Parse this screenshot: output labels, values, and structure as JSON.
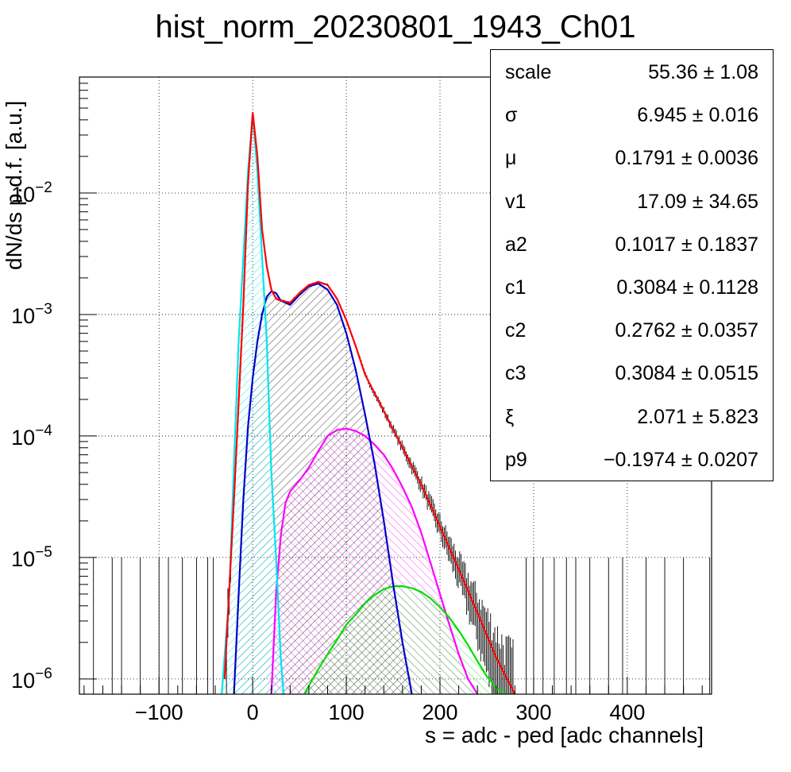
{
  "chart_data": {
    "type": "line",
    "title": "hist_norm_20230801_1943_Ch01",
    "xlabel": "s = adc - ped [adc channels]",
    "ylabel": "dN/ds p.d.f. [a.u.]",
    "xlim": [
      -185,
      490
    ],
    "ylim": [
      7.5e-07,
      0.09
    ],
    "yscale": "log",
    "grid": true,
    "x_ticks": [
      -100,
      0,
      100,
      200,
      300,
      400
    ],
    "x_tick_labels": [
      "−100",
      "0",
      "100",
      "200",
      "300",
      "400"
    ],
    "y_ticks": [
      1e-06,
      1e-05,
      0.0001,
      0.001,
      0.01
    ],
    "y_tick_labels": [
      {
        "base": "10",
        "exp": "−6"
      },
      {
        "base": "10",
        "exp": "−5"
      },
      {
        "base": "10",
        "exp": "−4"
      },
      {
        "base": "10",
        "exp": "−3"
      },
      {
        "base": "10",
        "exp": "−2"
      }
    ],
    "series": [
      {
        "color": "#ff0000",
        "role": "total fit",
        "x": [
          -30,
          -20,
          -10,
          -5,
          0,
          5,
          10,
          15,
          20,
          25,
          30,
          40,
          50,
          60,
          70,
          80,
          90,
          100,
          110,
          120,
          140,
          160,
          180,
          200,
          220,
          240,
          260,
          280
        ],
        "y": [
          1e-06,
          3e-05,
          0.0012,
          0.012,
          0.046,
          0.02,
          0.005,
          0.0025,
          0.0016,
          0.00135,
          0.0013,
          0.00125,
          0.0015,
          0.00175,
          0.00185,
          0.00175,
          0.00135,
          0.0009,
          0.00055,
          0.00032,
          0.00016,
          8e-05,
          4e-05,
          1.8e-05,
          8e-06,
          3.5e-06,
          1.5e-06,
          7.5e-07
        ]
      },
      {
        "color": "#00e5ee",
        "role": "pedestal component",
        "x": [
          -33,
          -25,
          -20,
          -15,
          -10,
          -5,
          0,
          5,
          10,
          15,
          20,
          25,
          30,
          33
        ],
        "y": [
          7.5e-07,
          5e-06,
          6e-05,
          0.0006,
          0.003,
          0.015,
          0.045,
          0.015,
          0.003,
          0.0006,
          5e-05,
          1e-05,
          1.5e-06,
          7.5e-07
        ]
      },
      {
        "color": "#0000cc",
        "role": "1st peak component",
        "x": [
          -20,
          -15,
          -10,
          -5,
          0,
          5,
          10,
          15,
          20,
          25,
          30,
          40,
          50,
          60,
          70,
          80,
          90,
          100,
          110,
          120,
          130,
          140,
          150,
          160,
          170
        ],
        "y": [
          7.5e-07,
          5e-06,
          3e-05,
          0.00012,
          0.0003,
          0.0006,
          0.001,
          0.0014,
          0.00155,
          0.0015,
          0.0013,
          0.0012,
          0.00145,
          0.0017,
          0.0018,
          0.0016,
          0.0012,
          0.0007,
          0.00035,
          0.00015,
          6e-05,
          2e-05,
          6e-06,
          2e-06,
          7.5e-07
        ]
      },
      {
        "color": "#ff00ff",
        "role": "2nd peak component",
        "x": [
          20,
          25,
          30,
          35,
          40,
          50,
          60,
          70,
          80,
          90,
          100,
          110,
          120,
          130,
          140,
          150,
          160,
          170,
          180,
          190,
          200,
          210,
          220,
          230,
          240
        ],
        "y": [
          7.5e-07,
          5e-06,
          1.5e-05,
          2.8e-05,
          3.5e-05,
          4.3e-05,
          5.5e-05,
          7.5e-05,
          0.0001,
          0.000112,
          0.000115,
          0.00011,
          0.0001,
          8.5e-05,
          7e-05,
          5.3e-05,
          3.8e-05,
          2.6e-05,
          1.6e-05,
          9e-06,
          5e-06,
          2.8e-06,
          1.6e-06,
          1e-06,
          7.5e-07
        ]
      },
      {
        "color": "#00dd00",
        "role": "3rd peak component",
        "x": [
          55,
          70,
          80,
          90,
          100,
          110,
          120,
          130,
          140,
          150,
          160,
          170,
          180,
          190,
          200,
          210,
          220,
          230,
          240,
          250,
          260,
          270
        ],
        "y": [
          7.5e-07,
          1.2e-06,
          1.6e-06,
          2.1e-06,
          2.8e-06,
          3.4e-06,
          4.2e-06,
          4.9e-06,
          5.5e-06,
          5.8e-06,
          5.8e-06,
          5.6e-06,
          5.2e-06,
          4.6e-06,
          3.9e-06,
          3.2e-06,
          2.5e-06,
          1.9e-06,
          1.4e-06,
          1.05e-06,
          8.5e-07,
          7.5e-07
        ]
      }
    ]
  },
  "stats": [
    {
      "name": "scale",
      "value": "55.36 ± 1.08"
    },
    {
      "name": "σ",
      "value": "6.945 ± 0.016"
    },
    {
      "name": "μ",
      "value": "0.1791 ± 0.0036"
    },
    {
      "name": "v1",
      "value": "17.09 ± 34.65"
    },
    {
      "name": "a2",
      "value": "0.1017 ± 0.1837"
    },
    {
      "name": "c1",
      "value": "0.3084 ± 0.1128"
    },
    {
      "name": "c2",
      "value": "0.2762 ± 0.0357"
    },
    {
      "name": "c3",
      "value": "0.3084 ± 0.0515"
    },
    {
      "name": "ξ",
      "value": "2.071 ± 5.823"
    },
    {
      "name": "p9",
      "value": "−0.1974 ± 0.0207"
    }
  ]
}
